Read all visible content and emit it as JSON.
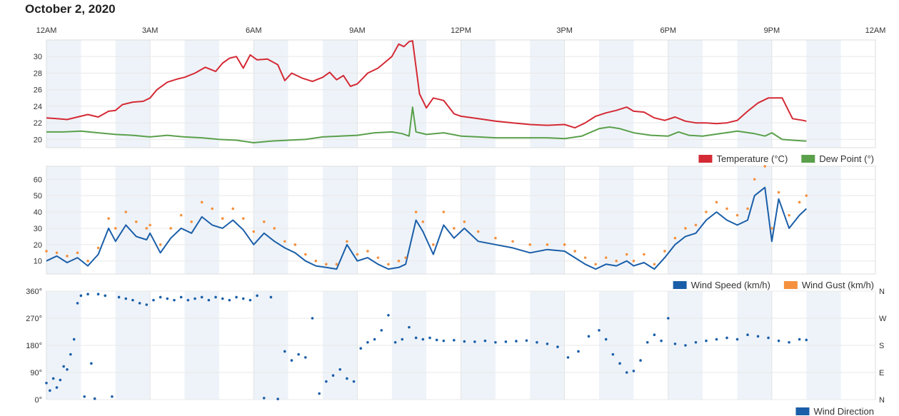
{
  "title": "October 2, 2020",
  "chart_data": [
    {
      "type": "line",
      "panel": "temperature",
      "x_axis": {
        "ticks": [
          "12AM",
          "3AM",
          "6AM",
          "9AM",
          "12PM",
          "3PM",
          "6PM",
          "9PM",
          "12AM"
        ],
        "range_hours": [
          0,
          24
        ]
      },
      "y_axis": {
        "ticks": [
          20,
          22,
          24,
          26,
          28,
          30
        ],
        "ylim": [
          19,
          32
        ]
      },
      "legend": {
        "placement": "bottom-right"
      },
      "series": [
        {
          "name": "Temperature (°C)",
          "color": "#d42a35",
          "kind": "line",
          "x_hours": [
            0,
            0.3,
            0.6,
            0.9,
            1.2,
            1.5,
            1.8,
            2.0,
            2.2,
            2.5,
            2.8,
            3.0,
            3.2,
            3.5,
            3.8,
            4.0,
            4.3,
            4.6,
            4.9,
            5.1,
            5.3,
            5.5,
            5.7,
            5.9,
            6.1,
            6.4,
            6.7,
            6.9,
            7.1,
            7.4,
            7.7,
            8.0,
            8.2,
            8.4,
            8.6,
            8.8,
            9.0,
            9.3,
            9.6,
            9.8,
            10.0,
            10.2,
            10.35,
            10.5,
            10.6,
            10.8,
            11.0,
            11.2,
            11.5,
            11.8,
            12.0,
            12.5,
            13.0,
            13.5,
            14.0,
            14.5,
            15.0,
            15.3,
            15.6,
            15.9,
            16.2,
            16.5,
            16.8,
            17.0,
            17.3,
            17.6,
            17.9,
            18.2,
            18.5,
            18.8,
            19.1,
            19.4,
            19.7,
            20.0,
            20.3,
            20.6,
            20.9,
            21.2,
            21.3,
            21.6,
            21.9,
            22.0
          ],
          "values": [
            22.6,
            22.5,
            22.4,
            22.7,
            23.0,
            22.7,
            23.4,
            23.5,
            24.2,
            24.5,
            24.6,
            25.0,
            26.0,
            26.9,
            27.3,
            27.5,
            28.0,
            28.7,
            28.2,
            29.2,
            29.8,
            30.0,
            28.6,
            30.2,
            29.6,
            29.7,
            29.0,
            27.1,
            28.0,
            27.4,
            27.0,
            27.5,
            28.1,
            27.2,
            27.7,
            26.4,
            26.7,
            28.0,
            28.6,
            29.3,
            30.0,
            31.5,
            31.2,
            31.8,
            31.9,
            25.5,
            23.8,
            25.0,
            24.7,
            23.1,
            22.8,
            22.5,
            22.2,
            22.0,
            21.8,
            21.7,
            21.8,
            21.4,
            22.0,
            22.8,
            23.2,
            23.5,
            23.9,
            23.4,
            23.3,
            22.6,
            22.3,
            22.7,
            22.2,
            22.0,
            22.0,
            21.9,
            22.0,
            22.3,
            23.4,
            24.4,
            25.0,
            25.0,
            25.0,
            22.5,
            22.3,
            22.2
          ]
        },
        {
          "name": "Dew Point (°)",
          "color": "#5aa04b",
          "kind": "line",
          "x_hours": [
            0,
            0.5,
            1.0,
            1.5,
            2.0,
            2.5,
            3.0,
            3.5,
            4.0,
            4.5,
            5.0,
            5.5,
            6.0,
            6.5,
            7.0,
            7.5,
            8.0,
            8.5,
            9.0,
            9.5,
            10.0,
            10.3,
            10.5,
            10.6,
            10.7,
            11.0,
            11.5,
            12.0,
            12.5,
            13.0,
            13.5,
            14.0,
            14.5,
            15.0,
            15.5,
            16.0,
            16.3,
            16.6,
            17.0,
            17.5,
            18.0,
            18.3,
            18.6,
            19.0,
            19.5,
            20.0,
            20.5,
            20.8,
            21.0,
            21.3,
            21.6,
            22.0
          ],
          "values": [
            20.9,
            20.9,
            21.0,
            20.8,
            20.6,
            20.5,
            20.3,
            20.5,
            20.3,
            20.2,
            20.0,
            19.9,
            19.6,
            19.8,
            19.9,
            20.0,
            20.3,
            20.4,
            20.5,
            20.8,
            20.9,
            20.7,
            20.4,
            23.9,
            20.9,
            20.6,
            20.8,
            20.4,
            20.3,
            20.2,
            20.2,
            20.2,
            20.2,
            20.1,
            20.4,
            21.3,
            21.5,
            21.3,
            20.8,
            20.5,
            20.4,
            20.9,
            20.5,
            20.4,
            20.7,
            21.0,
            20.7,
            20.4,
            20.8,
            20.0,
            19.9,
            19.8
          ]
        }
      ]
    },
    {
      "type": "line",
      "panel": "wind",
      "y_axis": {
        "ticks": [
          10,
          20,
          30,
          40,
          50,
          60
        ],
        "ylim": [
          2,
          68
        ]
      },
      "legend": {
        "placement": "bottom-right"
      },
      "series": [
        {
          "name": "Wind Speed (km/h)",
          "color": "#1a5ea8",
          "kind": "line",
          "x_hours": [
            0,
            0.3,
            0.6,
            0.9,
            1.2,
            1.5,
            1.8,
            2.0,
            2.3,
            2.6,
            2.9,
            3.0,
            3.3,
            3.6,
            3.9,
            4.2,
            4.5,
            4.8,
            5.1,
            5.4,
            5.7,
            6.0,
            6.3,
            6.6,
            6.9,
            7.2,
            7.5,
            7.8,
            8.1,
            8.4,
            8.7,
            9.0,
            9.3,
            9.6,
            9.9,
            10.2,
            10.4,
            10.7,
            10.9,
            11.2,
            11.5,
            11.8,
            12.1,
            12.5,
            13.0,
            13.5,
            14.0,
            14.5,
            15.0,
            15.3,
            15.6,
            15.9,
            16.2,
            16.5,
            16.8,
            17.0,
            17.3,
            17.6,
            17.9,
            18.2,
            18.5,
            18.8,
            19.1,
            19.4,
            19.7,
            20.0,
            20.3,
            20.5,
            20.8,
            21.0,
            21.2,
            21.5,
            21.8,
            22.0
          ],
          "values": [
            10,
            13,
            9,
            12,
            7,
            14,
            30,
            22,
            32,
            25,
            23,
            27,
            15,
            24,
            30,
            27,
            37,
            32,
            30,
            35,
            29,
            20,
            27,
            22,
            18,
            15,
            10,
            7,
            6,
            5,
            20,
            10,
            12,
            8,
            5,
            6,
            8,
            35,
            28,
            14,
            32,
            24,
            30,
            22,
            20,
            18,
            15,
            17,
            16,
            12,
            8,
            5,
            8,
            7,
            10,
            7,
            9,
            5,
            12,
            20,
            25,
            27,
            35,
            40,
            35,
            32,
            35,
            50,
            55,
            22,
            48,
            30,
            38,
            42
          ]
        },
        {
          "name": "Wind Gust (km/h)",
          "color": "#f5913e",
          "kind": "dots",
          "x_hours": [
            0,
            0.3,
            0.6,
            0.9,
            1.2,
            1.5,
            1.8,
            2.0,
            2.3,
            2.6,
            2.9,
            3.0,
            3.3,
            3.6,
            3.9,
            4.2,
            4.5,
            4.8,
            5.1,
            5.4,
            5.7,
            6.0,
            6.3,
            6.6,
            6.9,
            7.2,
            7.5,
            7.8,
            8.1,
            8.4,
            8.7,
            9.0,
            9.3,
            9.6,
            9.9,
            10.2,
            10.4,
            10.7,
            10.9,
            11.2,
            11.5,
            11.8,
            12.1,
            12.5,
            13.0,
            13.5,
            14.0,
            14.5,
            15.0,
            15.3,
            15.6,
            15.9,
            16.2,
            16.5,
            16.8,
            17.0,
            17.3,
            17.6,
            17.9,
            18.2,
            18.5,
            18.8,
            19.1,
            19.4,
            19.7,
            20.0,
            20.3,
            20.5,
            20.8,
            21.0,
            21.2,
            21.5,
            21.8,
            22.0
          ],
          "values": [
            16,
            15,
            13,
            15,
            10,
            18,
            36,
            30,
            40,
            34,
            30,
            32,
            20,
            30,
            38,
            34,
            46,
            42,
            36,
            42,
            36,
            28,
            34,
            30,
            22,
            20,
            14,
            10,
            8,
            8,
            22,
            14,
            16,
            12,
            8,
            10,
            12,
            40,
            34,
            20,
            40,
            30,
            34,
            28,
            24,
            22,
            20,
            20,
            20,
            16,
            12,
            8,
            12,
            10,
            14,
            10,
            14,
            8,
            16,
            24,
            30,
            32,
            40,
            46,
            42,
            38,
            42,
            60,
            68,
            30,
            52,
            38,
            46,
            50
          ]
        }
      ]
    },
    {
      "type": "scatter",
      "panel": "wind-direction",
      "y_axis": {
        "ticks": [
          "0°",
          "90°",
          "180°",
          "270°",
          "360°"
        ],
        "ylim": [
          0,
          360
        ]
      },
      "right_axis": {
        "ticks": [
          "N",
          "E",
          "S",
          "W",
          "N"
        ]
      },
      "legend": {
        "placement": "bottom-right"
      },
      "series": [
        {
          "name": "Wind Direction",
          "color": "#1a5ea8",
          "kind": "dots",
          "x_hours": [
            0,
            0.1,
            0.2,
            0.3,
            0.4,
            0.5,
            0.6,
            0.7,
            0.8,
            0.9,
            1.0,
            1.1,
            1.2,
            1.3,
            1.4,
            1.5,
            1.7,
            1.9,
            2.1,
            2.3,
            2.5,
            2.7,
            2.9,
            3.1,
            3.3,
            3.5,
            3.7,
            3.9,
            4.1,
            4.3,
            4.5,
            4.7,
            4.9,
            5.1,
            5.3,
            5.5,
            5.7,
            5.9,
            6.1,
            6.3,
            6.5,
            6.7,
            6.9,
            7.1,
            7.3,
            7.5,
            7.7,
            7.9,
            8.1,
            8.3,
            8.5,
            8.7,
            8.9,
            9.1,
            9.3,
            9.5,
            9.7,
            9.9,
            10.1,
            10.3,
            10.5,
            10.7,
            10.9,
            11.1,
            11.3,
            11.5,
            11.8,
            12.1,
            12.4,
            12.7,
            13.0,
            13.3,
            13.6,
            13.9,
            14.2,
            14.5,
            14.8,
            15.1,
            15.4,
            15.7,
            16.0,
            16.2,
            16.4,
            16.6,
            16.8,
            17.0,
            17.2,
            17.4,
            17.6,
            17.8,
            18.0,
            18.2,
            18.5,
            18.8,
            19.1,
            19.4,
            19.7,
            20.0,
            20.3,
            20.6,
            20.9,
            21.2,
            21.5,
            21.8,
            22.0
          ],
          "values": [
            55,
            30,
            70,
            40,
            65,
            110,
            100,
            150,
            200,
            320,
            345,
            10,
            350,
            120,
            3,
            350,
            345,
            10,
            340,
            335,
            330,
            320,
            315,
            330,
            340,
            335,
            330,
            340,
            330,
            335,
            340,
            330,
            340,
            335,
            330,
            340,
            335,
            330,
            345,
            5,
            340,
            2,
            160,
            130,
            150,
            140,
            270,
            20,
            60,
            80,
            100,
            70,
            60,
            170,
            190,
            200,
            230,
            280,
            190,
            200,
            240,
            205,
            200,
            205,
            198,
            195,
            197,
            193,
            192,
            195,
            190,
            192,
            194,
            196,
            190,
            185,
            175,
            140,
            160,
            210,
            230,
            200,
            150,
            120,
            90,
            95,
            130,
            190,
            215,
            195,
            270,
            185,
            180,
            190,
            195,
            200,
            205,
            200,
            215,
            210,
            205,
            195,
            190,
            200,
            198
          ]
        }
      ]
    }
  ]
}
